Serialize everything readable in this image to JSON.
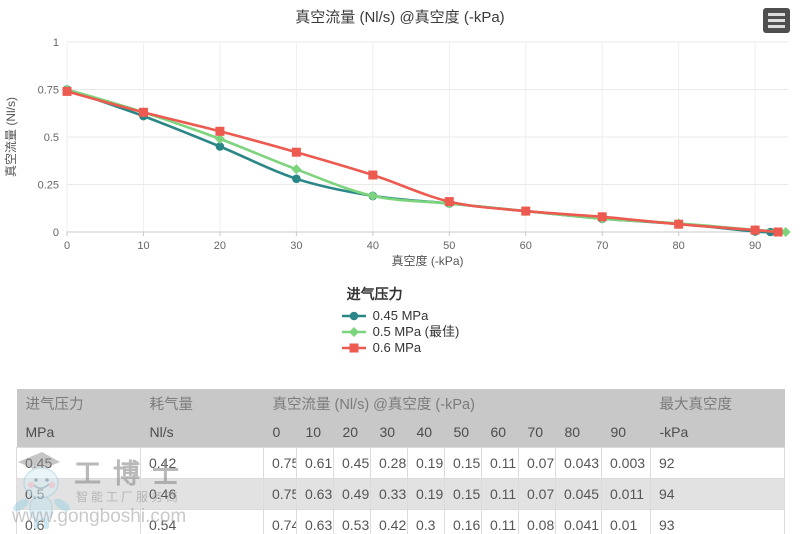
{
  "chart": {
    "title": "真空流量 (Nl/s) @真空度 (-kPa)",
    "menu_icon": "hamburger-icon"
  },
  "chart_data": {
    "type": "line",
    "title": "真空流量 (Nl/s) @真空度 (-kPa)",
    "xlabel": "真空度 (-kPa)",
    "ylabel": "真空流量 (Nl/s)",
    "xlim": [
      0,
      94.3
    ],
    "ylim": [
      0,
      1
    ],
    "xticks": [
      0,
      10,
      20,
      30,
      40,
      50,
      60,
      70,
      80,
      90
    ],
    "yticks": [
      0,
      0.25,
      0.5,
      0.75,
      1
    ],
    "grid": true,
    "legend_position": "bottom",
    "legend_title": "进气压力",
    "series": [
      {
        "name": "0.45 MPa",
        "color": "#2b8787",
        "marker": "circle",
        "points": [
          [
            0,
            0.75
          ],
          [
            10,
            0.61
          ],
          [
            20,
            0.45
          ],
          [
            30,
            0.28
          ],
          [
            40,
            0.19
          ],
          [
            50,
            0.15
          ],
          [
            60,
            0.11
          ],
          [
            70,
            0.07
          ],
          [
            80,
            0.043
          ],
          [
            90,
            0.003
          ],
          [
            92,
            0
          ]
        ]
      },
      {
        "name": "0.5 MPa (最佳)",
        "color": "#7cd47c",
        "marker": "diamond",
        "points": [
          [
            0,
            0.75
          ],
          [
            10,
            0.63
          ],
          [
            20,
            0.49
          ],
          [
            30,
            0.33
          ],
          [
            40,
            0.19
          ],
          [
            50,
            0.15
          ],
          [
            60,
            0.11
          ],
          [
            70,
            0.07
          ],
          [
            80,
            0.045
          ],
          [
            90,
            0.011
          ],
          [
            94,
            0
          ]
        ]
      },
      {
        "name": "0.6 MPa",
        "color": "#ec5a50",
        "marker": "square",
        "points": [
          [
            0,
            0.74
          ],
          [
            10,
            0.63
          ],
          [
            20,
            0.53
          ],
          [
            30,
            0.42
          ],
          [
            40,
            0.3
          ],
          [
            50,
            0.16
          ],
          [
            60,
            0.11
          ],
          [
            70,
            0.08
          ],
          [
            80,
            0.041
          ],
          [
            90,
            0.01
          ],
          [
            93,
            0
          ]
        ]
      }
    ]
  },
  "table": {
    "header_row1": [
      {
        "label": "进气压力",
        "span": 1
      },
      {
        "label": "耗气量",
        "span": 1
      },
      {
        "label": "真空流量 (Nl/s) @真空度 (-kPa)",
        "span": 10
      },
      {
        "label": "最大真空度",
        "span": 1
      }
    ],
    "header_row2": [
      "MPa",
      "Nl/s",
      "0",
      "10",
      "20",
      "30",
      "40",
      "50",
      "60",
      "70",
      "80",
      "90",
      "-kPa"
    ],
    "rows": [
      [
        "0.45",
        "0.42",
        "0.75",
        "0.61",
        "0.45",
        "0.28",
        "0.19",
        "0.15",
        "0.11",
        "0.07",
        "0.043",
        "0.003",
        "92"
      ],
      [
        "0.5",
        "0.46",
        "0.75",
        "0.63",
        "0.49",
        "0.33",
        "0.19",
        "0.15",
        "0.11",
        "0.07",
        "0.045",
        "0.011",
        "94"
      ],
      [
        "0.6",
        "0.54",
        "0.74",
        "0.63",
        "0.53",
        "0.42",
        "0.3",
        "0.16",
        "0.11",
        "0.08",
        "0.041",
        "0.01",
        "93"
      ]
    ]
  },
  "watermark": {
    "mascot_icon": "robot-mascot-icon",
    "brand": "工博士",
    "tagline": "智能工厂服务商",
    "url": "www.gongboshi.com"
  },
  "colors": {
    "series_teal": "#2b8787",
    "series_green": "#7cd47c",
    "series_red": "#ec5a50",
    "grid": "#ececec",
    "axis": "#c9c9c9",
    "tick_text": "#666666",
    "header_bg": "#c8c8c8",
    "row_alt_bg": "#e2e2e2",
    "cell_border": "#dcdcdc"
  }
}
